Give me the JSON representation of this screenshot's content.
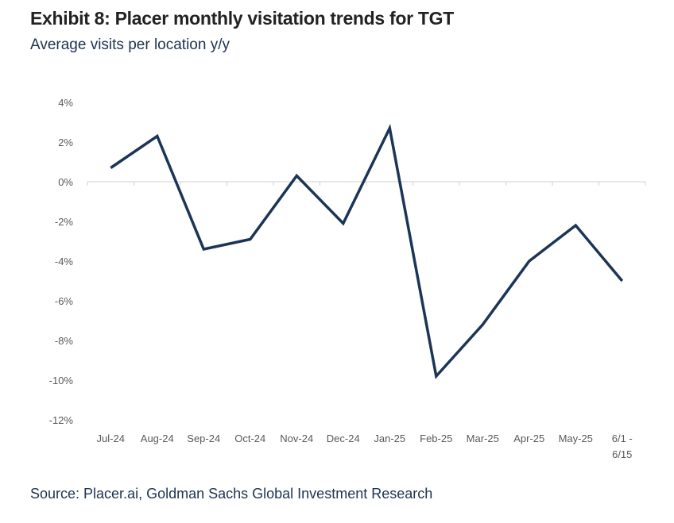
{
  "header": {
    "title": "Exhibit 8: Placer monthly visitation trends for TGT",
    "subtitle": "Average visits per location y/y"
  },
  "footer": {
    "source": "Source: Placer.ai, Goldman Sachs Global Investment Research"
  },
  "chart_data": {
    "type": "line",
    "title": "Exhibit 8: Placer monthly visitation trends for TGT",
    "subtitle": "Average visits per location y/y",
    "categories": [
      "Jul-24",
      "Aug-24",
      "Sep-24",
      "Oct-24",
      "Nov-24",
      "Dec-24",
      "Jan-25",
      "Feb-25",
      "Mar-25",
      "Apr-25",
      "May-25",
      "6/1 - 6/15"
    ],
    "series": [
      {
        "values": [
          0.7,
          2.3,
          -3.4,
          -2.9,
          0.3,
          -2.1,
          2.7,
          -9.8,
          -7.2,
          -4.0,
          -2.2,
          -5.0
        ]
      }
    ],
    "ylim": [
      -12,
      4
    ],
    "yticks": [
      4,
      2,
      0,
      -2,
      -4,
      -6,
      -8,
      -10,
      -12
    ],
    "ytick_labels": [
      "4%",
      "2%",
      "0%",
      "-2%",
      "-4%",
      "-6%",
      "-8%",
      "-10%",
      "-12%"
    ],
    "grid": false,
    "legend": "none",
    "line_color": "#1c3557"
  }
}
